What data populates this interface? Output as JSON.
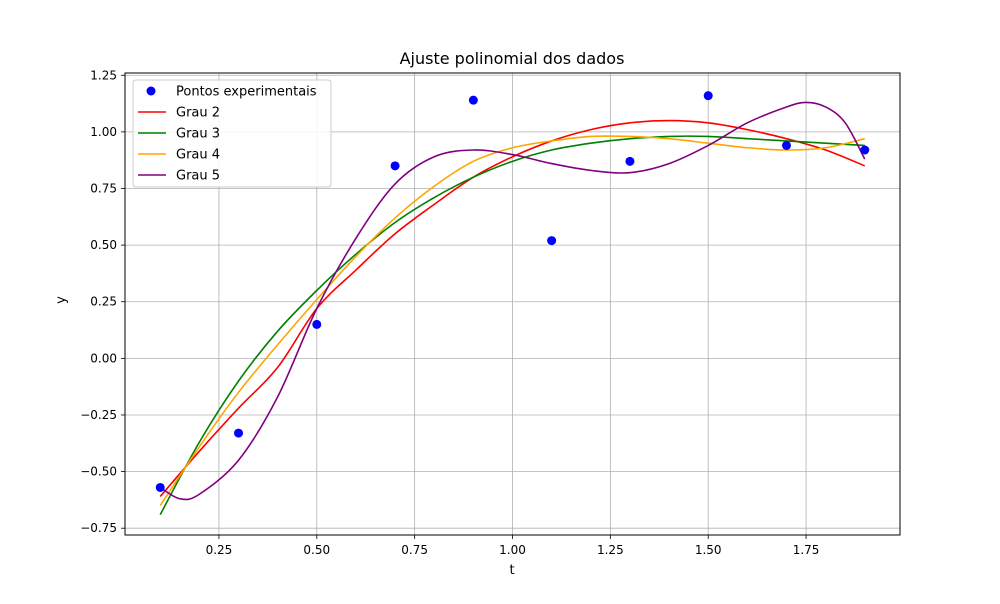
{
  "chart_data": {
    "type": "line",
    "title": "Ajuste polinomial dos dados",
    "xlabel": "t",
    "ylabel": "y",
    "xlim": [
      0.01,
      1.99
    ],
    "ylim": [
      -0.78,
      1.26
    ],
    "x_ticks": [
      0.25,
      0.5,
      0.75,
      1.0,
      1.25,
      1.5,
      1.75
    ],
    "x_tick_labels": [
      "0.25",
      "0.50",
      "0.75",
      "1.00",
      "1.25",
      "1.50",
      "1.75"
    ],
    "y_ticks": [
      -0.75,
      -0.5,
      -0.25,
      0.0,
      0.25,
      0.5,
      0.75,
      1.0,
      1.25
    ],
    "y_tick_labels": [
      "−0.75",
      "−0.50",
      "−0.25",
      "0.00",
      "0.25",
      "0.50",
      "0.75",
      "1.00",
      "1.25"
    ],
    "grid": true,
    "legend_position": "top-left",
    "scatter": {
      "name": "Pontos experimentais",
      "color": "#0000ff",
      "x": [
        0.1,
        0.3,
        0.5,
        0.7,
        0.9,
        1.1,
        1.3,
        1.5,
        1.7,
        1.9
      ],
      "y": [
        -0.57,
        -0.33,
        0.15,
        0.85,
        1.14,
        0.52,
        0.87,
        1.16,
        0.94,
        0.92
      ]
    },
    "series": [
      {
        "name": "Grau 2",
        "color": "#ff0000",
        "x": [
          0.1,
          0.2,
          0.3,
          0.4,
          0.5,
          0.6,
          0.7,
          0.8,
          0.9,
          1.0,
          1.1,
          1.2,
          1.3,
          1.4,
          1.5,
          1.6,
          1.7,
          1.8,
          1.9
        ],
        "y": [
          -0.61,
          -0.41,
          -0.22,
          -0.04,
          0.22,
          0.39,
          0.55,
          0.68,
          0.8,
          0.89,
          0.96,
          1.01,
          1.04,
          1.05,
          1.04,
          1.01,
          0.97,
          0.92,
          0.85
        ]
      },
      {
        "name": "Grau 3",
        "color": "#008000",
        "x": [
          0.1,
          0.2,
          0.3,
          0.4,
          0.5,
          0.6,
          0.7,
          0.8,
          0.9,
          1.0,
          1.1,
          1.2,
          1.3,
          1.4,
          1.5,
          1.6,
          1.7,
          1.8,
          1.9
        ],
        "y": [
          -0.69,
          -0.37,
          -0.1,
          0.12,
          0.3,
          0.46,
          0.6,
          0.71,
          0.8,
          0.87,
          0.92,
          0.95,
          0.97,
          0.98,
          0.98,
          0.97,
          0.96,
          0.95,
          0.94
        ]
      },
      {
        "name": "Grau 4",
        "color": "#ffa500",
        "x": [
          0.1,
          0.2,
          0.3,
          0.4,
          0.5,
          0.6,
          0.7,
          0.8,
          0.9,
          1.0,
          1.1,
          1.2,
          1.3,
          1.4,
          1.5,
          1.6,
          1.7,
          1.8,
          1.9
        ],
        "y": [
          -0.65,
          -0.39,
          -0.15,
          0.06,
          0.26,
          0.45,
          0.62,
          0.76,
          0.87,
          0.93,
          0.96,
          0.98,
          0.98,
          0.97,
          0.95,
          0.93,
          0.92,
          0.93,
          0.97
        ]
      },
      {
        "name": "Grau 5",
        "color": "#800080",
        "x": [
          0.1,
          0.15,
          0.2,
          0.3,
          0.4,
          0.5,
          0.6,
          0.7,
          0.8,
          0.9,
          1.0,
          1.1,
          1.2,
          1.3,
          1.4,
          1.5,
          1.6,
          1.7,
          1.75,
          1.8,
          1.85,
          1.9
        ],
        "y": [
          -0.57,
          -0.62,
          -0.6,
          -0.45,
          -0.17,
          0.22,
          0.53,
          0.77,
          0.89,
          0.92,
          0.9,
          0.86,
          0.83,
          0.82,
          0.86,
          0.94,
          1.04,
          1.11,
          1.13,
          1.11,
          1.04,
          0.88
        ]
      }
    ]
  }
}
